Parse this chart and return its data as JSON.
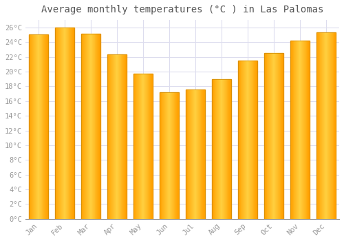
{
  "title": "Average monthly temperatures (°C ) in Las Palomas",
  "months": [
    "Jan",
    "Feb",
    "Mar",
    "Apr",
    "May",
    "Jun",
    "Jul",
    "Aug",
    "Sep",
    "Oct",
    "Nov",
    "Dec"
  ],
  "values": [
    25.0,
    26.0,
    25.1,
    22.3,
    19.7,
    17.2,
    17.6,
    19.0,
    21.5,
    22.5,
    24.2,
    25.3
  ],
  "bar_color_center": "#FFD040",
  "bar_color_edge": "#FFA000",
  "background_color": "#FFFFFF",
  "plot_bg_color": "#FFFFFF",
  "grid_color": "#DDDDEE",
  "title_fontsize": 10,
  "tick_fontsize": 7.5,
  "tick_color": "#999999",
  "ylim": [
    0,
    27
  ],
  "ytick_step": 2,
  "bar_width": 0.75,
  "bar_edge_color": "#CC8800",
  "bar_edge_width": 0.5
}
